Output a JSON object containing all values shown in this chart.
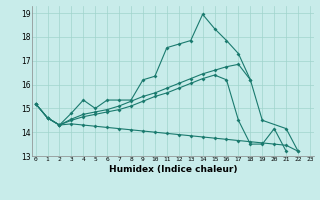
{
  "xlabel": "Humidex (Indice chaleur)",
  "xlim": [
    -0.3,
    23.3
  ],
  "ylim": [
    13,
    19.3
  ],
  "yticks": [
    13,
    14,
    15,
    16,
    17,
    18,
    19
  ],
  "xticks": [
    0,
    1,
    2,
    3,
    4,
    5,
    6,
    7,
    8,
    9,
    10,
    11,
    12,
    13,
    14,
    15,
    16,
    17,
    18,
    19,
    20,
    21,
    22,
    23
  ],
  "bg_color": "#c8ecea",
  "grid_color": "#a0d4cc",
  "line_color": "#1a7a6e",
  "line1_x": [
    0,
    1,
    2,
    3,
    4,
    5,
    6,
    7,
    8,
    9,
    10,
    11,
    12,
    13,
    14,
    15,
    16,
    17,
    18,
    19,
    21,
    22
  ],
  "line1_y": [
    15.2,
    14.6,
    14.3,
    14.8,
    15.35,
    15.0,
    15.35,
    15.35,
    15.35,
    16.2,
    16.35,
    17.55,
    17.7,
    17.85,
    18.95,
    18.35,
    17.85,
    17.3,
    16.2,
    14.5,
    14.15,
    13.2
  ],
  "line2_x": [
    0,
    1,
    2,
    3,
    4,
    5,
    6,
    7,
    8,
    9,
    10,
    11,
    12,
    13,
    14,
    15,
    16,
    17,
    18,
    19,
    20,
    21,
    22
  ],
  "line2_y": [
    15.2,
    14.6,
    14.3,
    14.35,
    14.3,
    14.25,
    14.2,
    14.15,
    14.1,
    14.05,
    14.0,
    13.95,
    13.9,
    13.85,
    13.8,
    13.75,
    13.7,
    13.65,
    13.6,
    13.55,
    13.5,
    13.45,
    13.2
  ],
  "line3_x": [
    0,
    1,
    2,
    3,
    4,
    5,
    6,
    7,
    8,
    9,
    10,
    11,
    12,
    13,
    14,
    15,
    16,
    17,
    18
  ],
  "line3_y": [
    15.2,
    14.6,
    14.3,
    14.55,
    14.75,
    14.85,
    14.95,
    15.1,
    15.3,
    15.5,
    15.65,
    15.85,
    16.05,
    16.25,
    16.45,
    16.6,
    16.75,
    16.85,
    16.2
  ],
  "line4_x": [
    0,
    1,
    2,
    3,
    4,
    5,
    6,
    7,
    8,
    9,
    10,
    11,
    12,
    13,
    14,
    15,
    16,
    17,
    18,
    19,
    20,
    21,
    22
  ],
  "line4_y": [
    15.2,
    14.6,
    14.3,
    14.5,
    14.65,
    14.75,
    14.85,
    14.95,
    15.1,
    15.3,
    15.5,
    15.65,
    15.85,
    16.05,
    16.25,
    16.4,
    16.2,
    14.5,
    13.5,
    13.5,
    14.15,
    13.2,
    null
  ]
}
